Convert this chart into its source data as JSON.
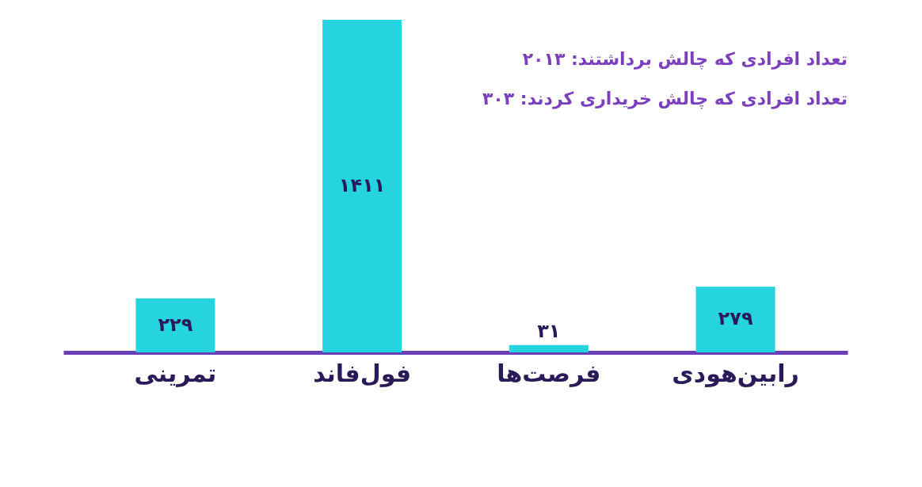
{
  "chart_data": {
    "type": "bar",
    "categories": [
      "تمرینی",
      "فول‌فاند",
      "فرصت‌ها",
      "رابین‌هودی"
    ],
    "values": [
      229,
      1411,
      31,
      279
    ],
    "value_labels": [
      "۲۲۹",
      "۱۴۱۱",
      "۳۱",
      "۲۷۹"
    ],
    "color": "#26d4e0",
    "annotations": [
      "تعداد افرادی که چالش برداشتند: ۲۰۱۳",
      "تعداد افرادی که چالش خریداری کردند: ۳۰۳"
    ],
    "grid": false
  }
}
